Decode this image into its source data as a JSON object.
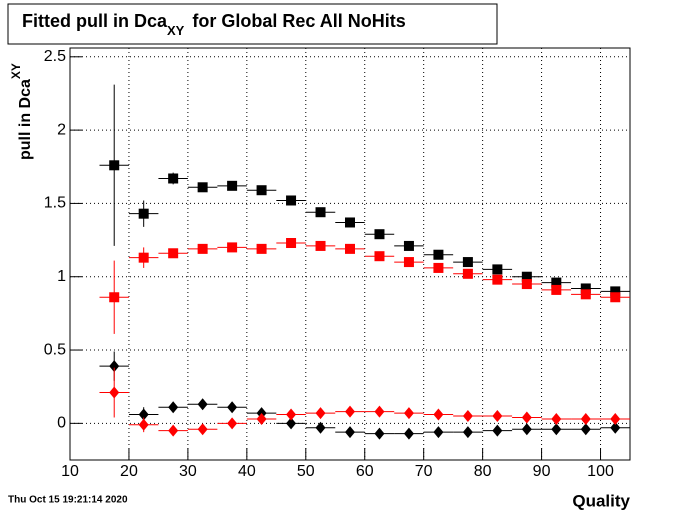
{
  "chart_data": {
    "type": "scatter",
    "title": {
      "main": "Fitted pull in Dca",
      "subscript": "XY",
      "rest": "for Global Rec All NoHits"
    },
    "y_label": {
      "main": "pull in Dca",
      "subscript": "XY"
    },
    "x_label": "Quality",
    "timestamp": "Thu Oct 15 19:21:14 2020",
    "x": [
      17.5,
      22.5,
      27.5,
      32.5,
      37.5,
      42.5,
      47.5,
      52.5,
      57.5,
      62.5,
      67.5,
      72.5,
      77.5,
      82.5,
      87.5,
      92.5,
      97.5,
      102.5
    ],
    "x_err": 2.5,
    "series": [
      {
        "color": "#000000",
        "marker": "square",
        "values": [
          1.76,
          1.43,
          1.67,
          1.61,
          1.62,
          1.59,
          1.52,
          1.44,
          1.37,
          1.29,
          1.21,
          1.15,
          1.1,
          1.05,
          1.0,
          0.96,
          0.92,
          0.9
        ],
        "errors": [
          0.55,
          0.09,
          0.04,
          0.02,
          0.02,
          0.02,
          0.02,
          0.02,
          0.02,
          0.02,
          0.02,
          0.02,
          0.02,
          0.02,
          0.02,
          0.02,
          0.02,
          0.02
        ]
      },
      {
        "color": "#ff0000",
        "marker": "square",
        "values": [
          0.86,
          1.13,
          1.16,
          1.19,
          1.2,
          1.19,
          1.23,
          1.21,
          1.19,
          1.14,
          1.1,
          1.06,
          1.02,
          0.98,
          0.95,
          0.91,
          0.88,
          0.86
        ],
        "errors": [
          0.25,
          0.07,
          0.03,
          0.02,
          0.02,
          0.02,
          0.02,
          0.02,
          0.02,
          0.02,
          0.02,
          0.02,
          0.02,
          0.02,
          0.02,
          0.02,
          0.02,
          0.02
        ]
      },
      {
        "color": "#000000",
        "marker": "diamond",
        "values": [
          0.39,
          0.06,
          0.11,
          0.13,
          0.11,
          0.07,
          0.0,
          -0.03,
          -0.06,
          -0.07,
          -0.07,
          -0.06,
          -0.06,
          -0.05,
          -0.04,
          -0.04,
          -0.04,
          -0.03
        ],
        "errors": [
          0.1,
          0.05,
          0.02,
          0.02,
          0.02,
          0.02,
          0.02,
          0.02,
          0.02,
          0.02,
          0.02,
          0.02,
          0.02,
          0.02,
          0.02,
          0.02,
          0.02,
          0.02
        ]
      },
      {
        "color": "#ff0000",
        "marker": "diamond",
        "values": [
          0.21,
          -0.01,
          -0.05,
          -0.04,
          0.0,
          0.03,
          0.06,
          0.07,
          0.08,
          0.08,
          0.07,
          0.06,
          0.05,
          0.05,
          0.04,
          0.03,
          0.03,
          0.03
        ],
        "errors": [
          0.17,
          0.05,
          0.02,
          0.02,
          0.02,
          0.02,
          0.02,
          0.02,
          0.02,
          0.02,
          0.02,
          0.02,
          0.02,
          0.02,
          0.02,
          0.02,
          0.02,
          0.02
        ]
      }
    ],
    "xlim": [
      10,
      105
    ],
    "ylim": [
      -0.25,
      2.56
    ],
    "xticks": [
      10,
      20,
      30,
      40,
      50,
      60,
      70,
      80,
      90,
      100
    ],
    "yticks": [
      0,
      0.5,
      1,
      1.5,
      2,
      2.5
    ],
    "grid": true
  }
}
